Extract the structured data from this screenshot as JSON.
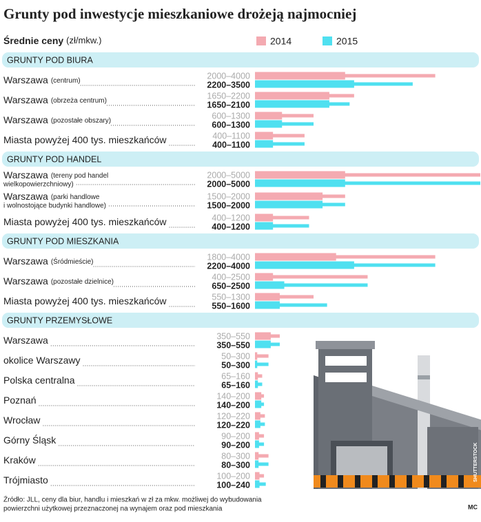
{
  "chart_data": {
    "type": "range_bar",
    "title": "Grunty pod inwestycje mieszkaniowe drożeją najmocniej",
    "subtitle": "Średnie ceny",
    "unit": "(zł/mkw.)",
    "xlim": [
      0,
      5000
    ],
    "series": [
      {
        "name": "2014",
        "color": "#f4aab1"
      },
      {
        "name": "2015",
        "color": "#4fe0f0"
      }
    ],
    "groups": [
      {
        "title": "GRUNTY POD BIURA",
        "rows": [
          {
            "label": "Warszawa",
            "note": [
              "(centrum)"
            ],
            "values": [
              [
                2000,
                4000
              ],
              [
                2200,
                3500
              ]
            ],
            "value_labels": [
              "2000–4000",
              "2200–3500"
            ]
          },
          {
            "label": "Warszawa",
            "note": [
              "(obrzeża centrum)"
            ],
            "values": [
              [
                1650,
                2200
              ],
              [
                1650,
                2100
              ]
            ],
            "value_labels": [
              "1650–2200",
              "1650–2100"
            ]
          },
          {
            "label": "Warszawa",
            "note": [
              "(pozostałe obszary)"
            ],
            "values": [
              [
                600,
                1300
              ],
              [
                600,
                1300
              ]
            ],
            "value_labels": [
              "600–1300",
              "600–1300"
            ]
          },
          {
            "label": "Miasta powyżej 400 tys. mieszkańców",
            "note": [],
            "values": [
              [
                400,
                1100
              ],
              [
                400,
                1100
              ]
            ],
            "value_labels": [
              "400–1100",
              "400–1100"
            ]
          }
        ]
      },
      {
        "title": "GRUNTY POD HANDEL",
        "rows": [
          {
            "label": "Warszawa",
            "note": [
              "(tereny pod handel",
              "wielkopowierzchniowy)"
            ],
            "values": [
              [
                2000,
                5000
              ],
              [
                2000,
                5000
              ]
            ],
            "value_labels": [
              "2000–5000",
              "2000–5000"
            ]
          },
          {
            "label": "Warszawa",
            "note": [
              "(parki handlowe",
              "i wolnostojące budynki handlowe)"
            ],
            "values": [
              [
                1500,
                2000
              ],
              [
                1500,
                2000
              ]
            ],
            "value_labels": [
              "1500–2000",
              "1500–2000"
            ]
          },
          {
            "label": "Miasta powyżej 400 tys. mieszkańców",
            "note": [],
            "values": [
              [
                400,
                1200
              ],
              [
                400,
                1200
              ]
            ],
            "value_labels": [
              "400–1200",
              "400–1200"
            ]
          }
        ]
      },
      {
        "title": "GRUNTY POD MIESZKANIA",
        "rows": [
          {
            "label": "Warszawa",
            "note": [
              "(Śródmieście)"
            ],
            "values": [
              [
                1800,
                4000
              ],
              [
                2200,
                4000
              ]
            ],
            "value_labels": [
              "1800–4000",
              "2200–4000"
            ]
          },
          {
            "label": "Warszawa",
            "note": [
              "(pozostałe dzielnice)"
            ],
            "values": [
              [
                400,
                2500
              ],
              [
                650,
                2500
              ]
            ],
            "value_labels": [
              "400–2500",
              "650–2500"
            ]
          },
          {
            "label": "Miasta powyżej 400 tys. mieszkańców",
            "note": [],
            "values": [
              [
                550,
                1300
              ],
              [
                550,
                1600
              ]
            ],
            "value_labels": [
              "550–1300",
              "550–1600"
            ]
          }
        ]
      },
      {
        "title": "GRUNTY PRZEMYSŁOWE",
        "rows": [
          {
            "label": "Warszawa",
            "note": [],
            "values": [
              [
                350,
                550
              ],
              [
                350,
                550
              ]
            ],
            "value_labels": [
              "350–550",
              "350–550"
            ]
          },
          {
            "label": "okolice Warszawy",
            "note": [],
            "values": [
              [
                50,
                300
              ],
              [
                50,
                300
              ]
            ],
            "value_labels": [
              "50–300",
              "50–300"
            ]
          },
          {
            "label": "Polska centralna",
            "note": [],
            "values": [
              [
                65,
                160
              ],
              [
                65,
                160
              ]
            ],
            "value_labels": [
              "65–160",
              "65–160"
            ]
          },
          {
            "label": "Poznań",
            "note": [],
            "values": [
              [
                140,
                200
              ],
              [
                140,
                200
              ]
            ],
            "value_labels": [
              "140–200",
              "140–200"
            ]
          },
          {
            "label": "Wrocław",
            "note": [],
            "values": [
              [
                120,
                220
              ],
              [
                120,
                220
              ]
            ],
            "value_labels": [
              "120–220",
              "120–220"
            ]
          },
          {
            "label": "Górny Śląsk",
            "note": [],
            "values": [
              [
                90,
                200
              ],
              [
                90,
                200
              ]
            ],
            "value_labels": [
              "90–200",
              "90–200"
            ]
          },
          {
            "label": "Kraków",
            "note": [],
            "values": [
              [
                80,
                300
              ],
              [
                80,
                300
              ]
            ],
            "value_labels": [
              "80–300",
              "80–300"
            ]
          },
          {
            "label": "Trójmiasto",
            "note": [],
            "values": [
              [
                100,
                200
              ],
              [
                100,
                240
              ]
            ],
            "value_labels": [
              "100–200",
              "100–240"
            ]
          }
        ]
      }
    ],
    "source": [
      "Źródło: JLL, ceny dla biur, handlu i mieszkań w zł za mkw. możliwej do wybudowania",
      "powierzchni użytkowej przeznaczonej na wynajem oraz pod mieszkania"
    ],
    "photo_credit": "SHUTTERSTOCK",
    "author": "MC"
  }
}
